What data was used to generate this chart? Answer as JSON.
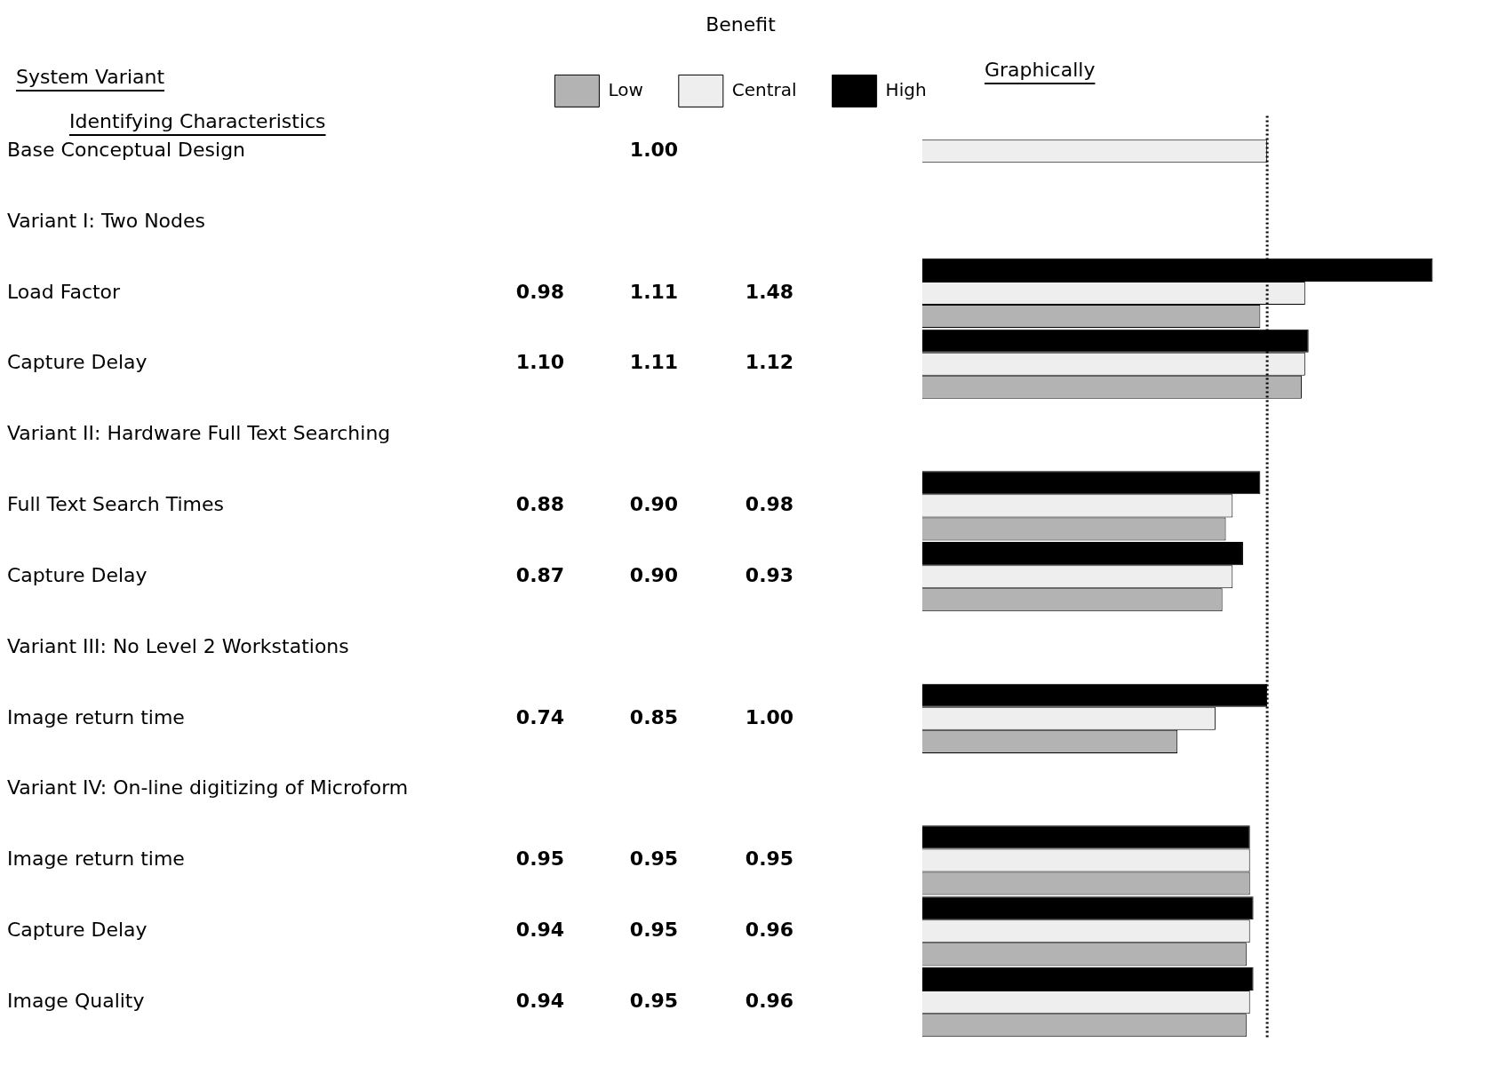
{
  "chart_data": {
    "type": "bar",
    "orientation": "horizontal",
    "legend": "top",
    "legend_title": "Benefit",
    "grid": false,
    "annotations": [
      "System Variant",
      "Identifying Characteristics",
      "Graphically"
    ],
    "categories": [
      "Base Conceptual Design",
      "Variant I: Two Nodes",
      "Load Factor",
      "Capture Delay",
      "Variant II: Hardware Full Text Searching",
      "Full Text Search Times",
      "Capture Delay",
      "Variant III: No Level 2 Workstations",
      "Image return time",
      "Variant IV: On-line digitizing of Microform",
      "Image return time",
      "Capture Delay",
      "Image Quality"
    ],
    "series": [
      {
        "name": "Low",
        "color": "#b3b3b3",
        "values": [
          null,
          null,
          0.98,
          1.1,
          null,
          0.88,
          0.87,
          null,
          0.74,
          null,
          0.95,
          0.94,
          0.94
        ],
        "value_labels": [
          null,
          null,
          "0.98",
          "1.10",
          null,
          "0.88",
          "0.87",
          null,
          "0.74",
          null,
          "0.95",
          "0.94",
          "0.94"
        ]
      },
      {
        "name": "Central",
        "color": "#eeeeee",
        "values": [
          1.0,
          null,
          1.11,
          1.11,
          null,
          0.9,
          0.9,
          null,
          0.85,
          null,
          0.95,
          0.95,
          0.95
        ],
        "value_labels": [
          "1.00",
          null,
          "1.11",
          "1.11",
          null,
          "0.90",
          "0.90",
          null,
          "0.85",
          null,
          "0.95",
          "0.95",
          "0.95"
        ]
      },
      {
        "name": "High",
        "color": "#000000",
        "values": [
          null,
          null,
          1.48,
          1.12,
          null,
          0.98,
          0.93,
          null,
          1.0,
          null,
          0.95,
          0.96,
          0.96
        ],
        "value_labels": [
          null,
          null,
          "1.48",
          "1.12",
          null,
          "0.98",
          "0.93",
          null,
          "1.00",
          null,
          "0.95",
          "0.96",
          "0.96"
        ]
      }
    ],
    "ref_lines": [
      {
        "axis": "x",
        "value": 1.0,
        "line_style": "dotted",
        "color": "#000000"
      }
    ]
  }
}
